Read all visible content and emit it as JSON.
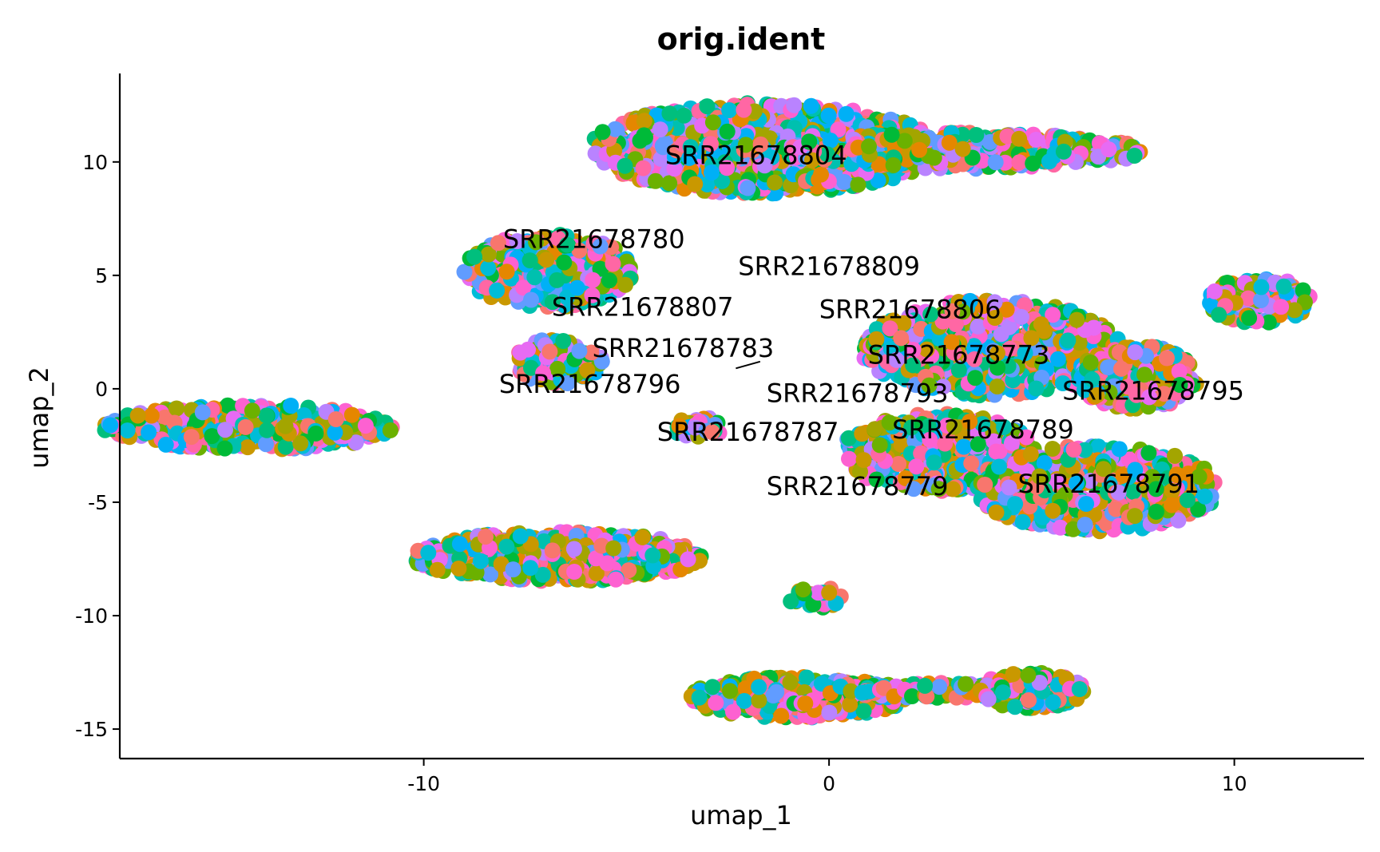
{
  "chart_data": {
    "type": "scatter",
    "title": "orig.ident",
    "xlabel": "umap_1",
    "ylabel": "umap_2",
    "xlim": [
      -17.5,
      13.2
    ],
    "ylim": [
      -16.3,
      13.9
    ],
    "xticks": [
      -10,
      0,
      10
    ],
    "yticks": [
      10,
      5,
      0,
      -5,
      -10,
      -15
    ],
    "xtick_labels": [
      "-10",
      "0",
      "10"
    ],
    "ytick_labels": [
      "10",
      "5",
      "0",
      "-5",
      "-10",
      "-15"
    ],
    "grid": false,
    "legend": "none",
    "palette": [
      "#F8766D",
      "#E58700",
      "#C99800",
      "#A3A500",
      "#6BB100",
      "#00BA38",
      "#00BF7D",
      "#00C0AF",
      "#00BCD8",
      "#00B0F6",
      "#619CFF",
      "#B983FF",
      "#E76BF3",
      "#FD61D1",
      "#FF67A4"
    ],
    "clusters": [
      {
        "id": "c01",
        "cx": -1.6,
        "cy": 10.6,
        "rx": 4.3,
        "ry": 2.0,
        "n": 900
      },
      {
        "id": "c02",
        "cx": 3.3,
        "cy": 10.5,
        "rx": 4.5,
        "ry": 0.8,
        "n": 380
      },
      {
        "id": "c03",
        "cx": -6.9,
        "cy": 5.2,
        "rx": 2.1,
        "ry": 1.6,
        "n": 420
      },
      {
        "id": "c04",
        "cx": -6.7,
        "cy": 1.2,
        "rx": 1.1,
        "ry": 1.0,
        "n": 120
      },
      {
        "id": "c05",
        "cx": -14.3,
        "cy": -1.7,
        "rx": 3.6,
        "ry": 1.0,
        "n": 380
      },
      {
        "id": "c06",
        "cx": -3.2,
        "cy": -1.7,
        "rx": 0.65,
        "ry": 0.45,
        "n": 30
      },
      {
        "id": "c07",
        "cx": 4.0,
        "cy": 1.8,
        "rx": 3.2,
        "ry": 2.1,
        "n": 650
      },
      {
        "id": "c08",
        "cx": 2.7,
        "cy": -2.8,
        "rx": 2.4,
        "ry": 1.7,
        "n": 450
      },
      {
        "id": "c09",
        "cx": 6.6,
        "cy": -4.4,
        "rx": 3.0,
        "ry": 1.9,
        "n": 600
      },
      {
        "id": "c10",
        "cx": 7.6,
        "cy": 0.5,
        "rx": 1.5,
        "ry": 1.4,
        "n": 260
      },
      {
        "id": "c11",
        "cx": 10.6,
        "cy": 3.9,
        "rx": 1.3,
        "ry": 1.0,
        "n": 180
      },
      {
        "id": "c12",
        "cx": -6.7,
        "cy": -7.4,
        "rx": 3.6,
        "ry": 1.1,
        "n": 560
      },
      {
        "id": "c13",
        "cx": -0.3,
        "cy": -9.2,
        "rx": 0.7,
        "ry": 0.45,
        "n": 30
      },
      {
        "id": "c14",
        "cx": -0.8,
        "cy": -13.6,
        "rx": 2.7,
        "ry": 0.9,
        "n": 420
      },
      {
        "id": "c15",
        "cx": 2.5,
        "cy": -13.3,
        "rx": 2.0,
        "ry": 0.35,
        "n": 90
      },
      {
        "id": "c16",
        "cx": 5.0,
        "cy": -13.3,
        "rx": 1.3,
        "ry": 0.8,
        "n": 180
      }
    ],
    "annotations": [
      {
        "text": "SRR21678804",
        "x": -1.8,
        "y": 10.3
      },
      {
        "text": "SRR21678780",
        "x": -5.8,
        "y": 6.6
      },
      {
        "text": "SRR21678809",
        "x": 0.0,
        "y": 5.4
      },
      {
        "text": "SRR21678807",
        "x": -4.6,
        "y": 3.6
      },
      {
        "text": "SRR21678806",
        "x": 2.0,
        "y": 3.5
      },
      {
        "text": "SRR21678783",
        "x": -3.6,
        "y": 1.8
      },
      {
        "text": "SRR21678773",
        "x": 3.2,
        "y": 1.5
      },
      {
        "text": "SRR21678796",
        "x": -5.9,
        "y": 0.2
      },
      {
        "text": "SRR21678793",
        "x": 0.7,
        "y": -0.2
      },
      {
        "text": "SRR21678795",
        "x": 8.0,
        "y": -0.1
      },
      {
        "text": "SRR21678787",
        "x": -2.0,
        "y": -1.9
      },
      {
        "text": "SRR21678789",
        "x": 3.8,
        "y": -1.8
      },
      {
        "text": "SRR21678779",
        "x": 0.7,
        "y": -4.3
      },
      {
        "text": "SRR21678791",
        "x": 6.9,
        "y": -4.2
      }
    ],
    "leader_lines": [
      {
        "from": [
          -2.3,
          0.9
        ],
        "to": [
          -1.7,
          1.2
        ]
      }
    ]
  }
}
